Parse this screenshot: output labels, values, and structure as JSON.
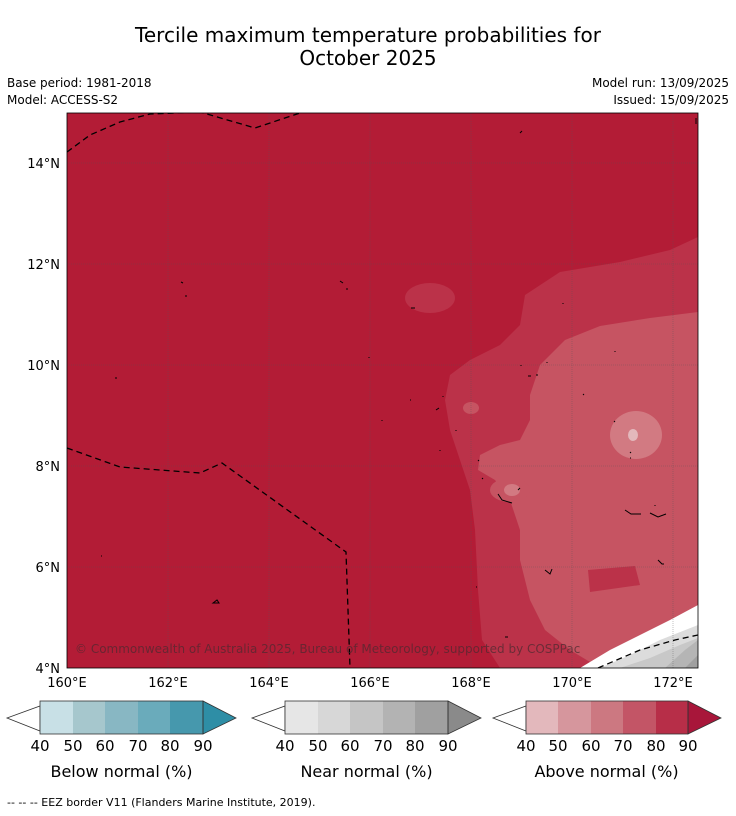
{
  "title_line1": "Tercile maximum temperature probabilities for",
  "title_line2": "October 2025",
  "meta": {
    "base_period": "Base period: 1981-2018",
    "model": "Model: ACCESS-S2",
    "model_run": "Model run: 13/09/2025",
    "issued": "Issued: 15/09/2025"
  },
  "map": {
    "lat_labels": [
      "14°N",
      "12°N",
      "10°N",
      "8°N",
      "6°N",
      "4°N"
    ],
    "lon_labels": [
      "160°E",
      "162°E",
      "164°E",
      "166°E",
      "168°E",
      "170°E",
      "172°E"
    ],
    "copyright": "© Commonwealth of Australia 2025, Bureau of Meteorology, supported by COSPPac",
    "colors": {
      "above_90": "#b31c36",
      "above_80": "#bb3249",
      "above_70": "#c65462",
      "above_60": "#d27a82",
      "near_80": "#a0a0a0",
      "near_70": "#b5b5b5",
      "near_60": "#c8c8c8",
      "near_50": "#dcdcdc"
    }
  },
  "colorbars": [
    {
      "label": "Below normal (%)",
      "ticks": [
        "40",
        "50",
        "60",
        "70",
        "80",
        "90"
      ],
      "colors": [
        "#c8e0e6",
        "#a6c7cd",
        "#88b7c3",
        "#6aabbb",
        "#4698ad",
        "#2e8ea6"
      ]
    },
    {
      "label": "Near normal (%)",
      "ticks": [
        "40",
        "50",
        "60",
        "70",
        "80",
        "90"
      ],
      "colors": [
        "#e6e6e6",
        "#d7d7d7",
        "#c5c5c5",
        "#b3b3b3",
        "#a0a0a0",
        "#8a8a8a"
      ]
    },
    {
      "label": "Above normal (%)",
      "ticks": [
        "40",
        "50",
        "60",
        "70",
        "80",
        "90"
      ],
      "colors": [
        "#e3b8bc",
        "#d6969d",
        "#cc7881",
        "#c35566",
        "#b72e48",
        "#a8163a"
      ]
    }
  ],
  "footer": "--  --  -- EEZ border V11 (Flanders Marine Institute, 2019)."
}
